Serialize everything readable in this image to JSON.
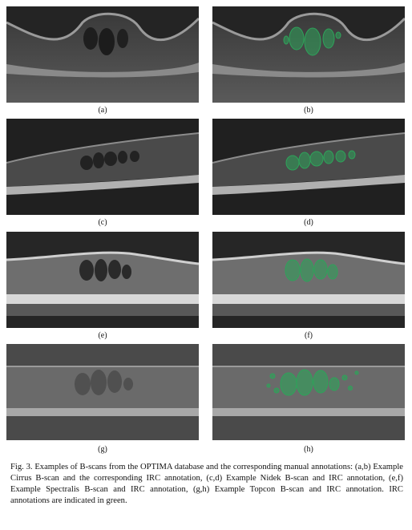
{
  "figure": {
    "panels": [
      {
        "label": "(a)",
        "device": "cirrus",
        "annotated": false
      },
      {
        "label": "(b)",
        "device": "cirrus",
        "annotated": true
      },
      {
        "label": "(c)",
        "device": "nidek",
        "annotated": false
      },
      {
        "label": "(d)",
        "device": "nidek",
        "annotated": true
      },
      {
        "label": "(e)",
        "device": "spectralis",
        "annotated": false
      },
      {
        "label": "(f)",
        "device": "spectralis",
        "annotated": true
      },
      {
        "label": "(g)",
        "device": "topcon",
        "annotated": false
      },
      {
        "label": "(h)",
        "device": "topcon",
        "annotated": true
      }
    ],
    "annotation_color": "#2ea35a",
    "caption": "Fig. 3. Examples of B-scans from the OPTIMA database and the corresponding manual annotations: (a,b) Example Cirrus B-scan and the corresponding IRC annotation, (c,d) Example Nidek B-scan and IRC annotation, (e,f) Example Spectralis B-scan and IRC annotation, (g,h) Example Topcon B-scan and IRC annotation. IRC annotations are indicated in green."
  }
}
